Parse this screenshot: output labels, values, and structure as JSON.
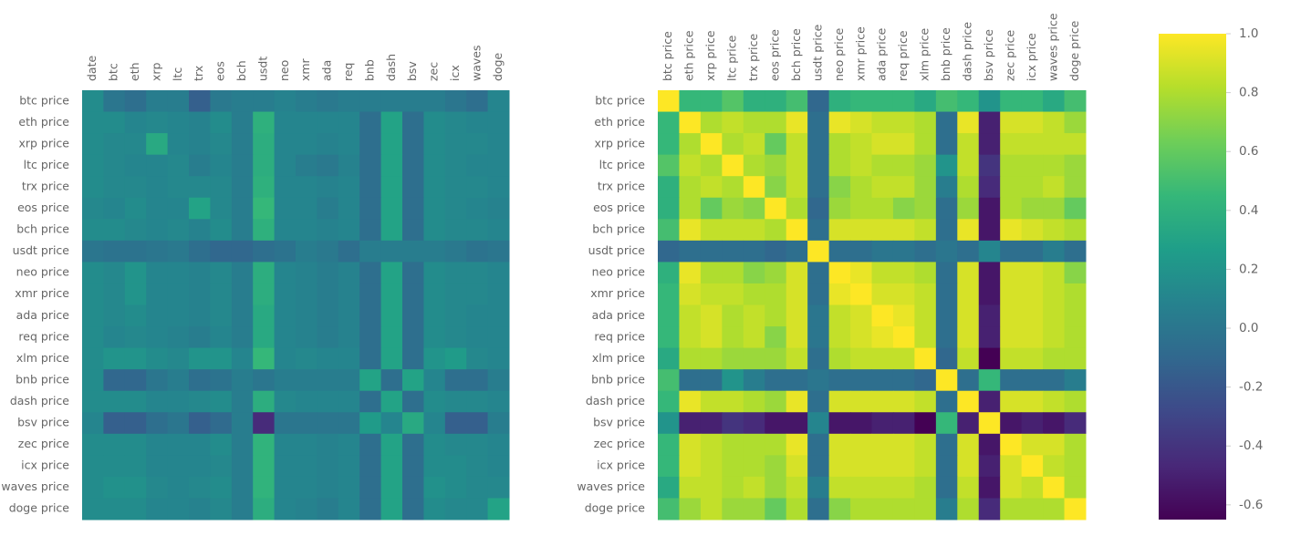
{
  "chart_data": [
    {
      "type": "heatmap",
      "colormap": "viridis",
      "vlim": [
        -0.65,
        1
      ],
      "columns": [
        "date",
        "btc",
        "eth",
        "xrp",
        "ltc",
        "trx",
        "eos",
        "bch",
        "usdt",
        "neo",
        "xmr",
        "ada",
        "req",
        "bnb",
        "dash",
        "bsv",
        "zec",
        "icx",
        "waves",
        "doge"
      ],
      "rows": [
        "btc price",
        "eth price",
        "xrp price",
        "ltc price",
        "trx price",
        "eos price",
        "bch price",
        "usdt price",
        "neo price",
        "xmr price",
        "ada price",
        "req price",
        "xlm price",
        "bnb price",
        "dash price",
        "bsv price",
        "zec price",
        "icx price",
        "waves price",
        "doge price"
      ],
      "values": [
        [
          0.15,
          0.0,
          -0.05,
          0.05,
          0.05,
          -0.15,
          0.02,
          0.05,
          0.05,
          0.08,
          0.05,
          0.02,
          0.05,
          0.05,
          0.05,
          0.05,
          0.05,
          0.0,
          -0.05,
          0.1
        ],
        [
          0.15,
          0.15,
          0.1,
          0.12,
          0.1,
          0.08,
          0.15,
          0.05,
          0.4,
          0.1,
          0.1,
          0.1,
          0.1,
          -0.05,
          0.3,
          -0.05,
          0.15,
          0.12,
          0.1,
          0.1
        ],
        [
          0.15,
          0.12,
          0.12,
          0.35,
          0.1,
          0.08,
          0.12,
          0.05,
          0.38,
          0.1,
          0.1,
          0.08,
          0.1,
          -0.05,
          0.3,
          -0.05,
          0.15,
          0.12,
          0.12,
          0.1
        ],
        [
          0.15,
          0.12,
          0.1,
          0.1,
          0.12,
          0.05,
          0.1,
          0.05,
          0.38,
          0.1,
          0.05,
          0.02,
          0.08,
          -0.05,
          0.3,
          -0.05,
          0.15,
          0.12,
          0.1,
          0.1
        ],
        [
          0.15,
          0.12,
          0.12,
          0.1,
          0.12,
          0.12,
          0.12,
          0.05,
          0.4,
          0.1,
          0.1,
          0.08,
          0.1,
          -0.05,
          0.3,
          -0.05,
          0.15,
          0.12,
          0.12,
          0.1
        ],
        [
          0.12,
          0.1,
          0.15,
          0.1,
          0.1,
          0.3,
          0.12,
          0.05,
          0.45,
          0.1,
          0.1,
          0.05,
          0.1,
          -0.05,
          0.3,
          -0.05,
          0.15,
          0.12,
          0.1,
          0.08
        ],
        [
          0.15,
          0.15,
          0.12,
          0.1,
          0.12,
          0.08,
          0.15,
          0.05,
          0.4,
          0.1,
          0.1,
          0.08,
          0.1,
          -0.05,
          0.3,
          -0.05,
          0.15,
          0.12,
          0.12,
          0.1
        ],
        [
          0.0,
          -0.02,
          -0.02,
          0.0,
          0.02,
          -0.05,
          -0.1,
          -0.1,
          -0.05,
          -0.02,
          0.05,
          0.02,
          -0.05,
          0.05,
          0.05,
          0.05,
          0.05,
          0.02,
          -0.02,
          0.0
        ],
        [
          0.15,
          0.12,
          0.2,
          0.1,
          0.1,
          0.08,
          0.12,
          0.05,
          0.38,
          0.1,
          0.08,
          0.05,
          0.08,
          -0.05,
          0.3,
          -0.05,
          0.15,
          0.12,
          0.12,
          0.1
        ],
        [
          0.15,
          0.12,
          0.2,
          0.1,
          0.1,
          0.08,
          0.12,
          0.05,
          0.38,
          0.1,
          0.08,
          0.05,
          0.08,
          -0.05,
          0.3,
          -0.05,
          0.15,
          0.12,
          0.12,
          0.1
        ],
        [
          0.15,
          0.12,
          0.15,
          0.1,
          0.1,
          0.08,
          0.12,
          0.05,
          0.35,
          0.1,
          0.08,
          0.05,
          0.08,
          -0.05,
          0.3,
          -0.05,
          0.15,
          0.12,
          0.1,
          0.1
        ],
        [
          0.15,
          0.1,
          0.12,
          0.1,
          0.08,
          0.05,
          0.1,
          0.05,
          0.35,
          0.1,
          0.08,
          0.05,
          0.08,
          -0.05,
          0.3,
          -0.05,
          0.15,
          0.12,
          0.1,
          0.1
        ],
        [
          0.15,
          0.2,
          0.2,
          0.15,
          0.12,
          0.2,
          0.2,
          0.1,
          0.45,
          0.1,
          0.12,
          0.1,
          0.1,
          -0.05,
          0.3,
          -0.05,
          0.2,
          0.25,
          0.12,
          0.1
        ],
        [
          0.15,
          -0.1,
          -0.1,
          0.0,
          0.05,
          -0.05,
          -0.02,
          0.05,
          0.0,
          0.05,
          0.05,
          0.05,
          0.05,
          0.3,
          -0.05,
          0.3,
          0.1,
          -0.05,
          -0.05,
          0.05
        ],
        [
          0.15,
          0.15,
          0.15,
          0.1,
          0.1,
          0.12,
          0.15,
          0.05,
          0.38,
          0.12,
          0.1,
          0.1,
          0.1,
          -0.05,
          0.3,
          -0.05,
          0.15,
          0.12,
          0.12,
          0.1
        ],
        [
          0.1,
          -0.15,
          -0.15,
          -0.05,
          0.0,
          -0.15,
          -0.08,
          0.05,
          -0.45,
          0.0,
          0.0,
          0.0,
          0.0,
          0.25,
          0.1,
          0.35,
          0.1,
          -0.15,
          -0.15,
          0.05
        ],
        [
          0.15,
          0.15,
          0.15,
          0.1,
          0.1,
          0.1,
          0.15,
          0.05,
          0.42,
          0.1,
          0.1,
          0.08,
          0.1,
          -0.05,
          0.3,
          -0.05,
          0.15,
          0.12,
          0.12,
          0.1
        ],
        [
          0.15,
          0.15,
          0.15,
          0.1,
          0.1,
          0.1,
          0.12,
          0.05,
          0.42,
          0.1,
          0.1,
          0.08,
          0.1,
          -0.05,
          0.3,
          -0.05,
          0.15,
          0.15,
          0.12,
          0.1
        ],
        [
          0.15,
          0.18,
          0.18,
          0.12,
          0.1,
          0.12,
          0.15,
          0.05,
          0.42,
          0.1,
          0.1,
          0.08,
          0.1,
          -0.05,
          0.3,
          -0.05,
          0.18,
          0.15,
          0.12,
          0.12
        ],
        [
          0.15,
          0.15,
          0.15,
          0.1,
          0.1,
          0.08,
          0.12,
          0.05,
          0.38,
          0.1,
          0.08,
          0.05,
          0.1,
          -0.05,
          0.3,
          -0.05,
          0.15,
          0.12,
          0.12,
          0.3
        ]
      ]
    },
    {
      "type": "heatmap",
      "colormap": "viridis",
      "vlim": [
        -0.65,
        1
      ],
      "columns": [
        "btc price",
        "eth price",
        "xrp price",
        "ltc price",
        "trx price",
        "eos price",
        "bch price",
        "usdt price",
        "neo price",
        "xmr price",
        "ada price",
        "req price",
        "xlm price",
        "bnb price",
        "dash price",
        "bsv price",
        "zec price",
        "icx price",
        "waves price",
        "doge price"
      ],
      "rows": [
        "btc price",
        "eth price",
        "xrp price",
        "ltc price",
        "trx price",
        "eos price",
        "bch price",
        "usdt price",
        "neo price",
        "xmr price",
        "ada price",
        "req price",
        "xlm price",
        "bnb price",
        "dash price",
        "bsv price",
        "zec price",
        "icx price",
        "waves price",
        "doge price"
      ],
      "colorbar_ticks": [
        {
          "value": 1,
          "label": "1.0"
        },
        0.8,
        0.6,
        0.4,
        0.2,
        {
          "value": 0,
          "label": "0.0"
        },
        -0.2,
        -0.4,
        -0.6
      ],
      "values": [
        [
          1,
          0.45,
          0.45,
          0.55,
          0.4,
          0.4,
          0.5,
          -0.1,
          0.4,
          0.45,
          0.45,
          0.45,
          0.35,
          0.5,
          0.45,
          0.2,
          0.45,
          0.45,
          0.35,
          0.5
        ],
        [
          0.45,
          1,
          0.8,
          0.85,
          0.8,
          0.8,
          0.95,
          -0.05,
          0.95,
          0.9,
          0.85,
          0.85,
          0.8,
          -0.05,
          0.95,
          -0.5,
          0.9,
          0.9,
          0.85,
          0.75
        ],
        [
          0.45,
          0.8,
          1,
          0.8,
          0.85,
          0.6,
          0.85,
          -0.05,
          0.8,
          0.85,
          0.9,
          0.9,
          0.8,
          -0.05,
          0.85,
          -0.5,
          0.85,
          0.85,
          0.85,
          0.85
        ],
        [
          0.55,
          0.85,
          0.8,
          1,
          0.8,
          0.75,
          0.85,
          -0.05,
          0.8,
          0.85,
          0.8,
          0.8,
          0.75,
          0.2,
          0.85,
          -0.4,
          0.8,
          0.8,
          0.8,
          0.75
        ],
        [
          0.4,
          0.8,
          0.85,
          0.8,
          1,
          0.7,
          0.85,
          -0.05,
          0.7,
          0.8,
          0.85,
          0.85,
          0.75,
          0.05,
          0.8,
          -0.45,
          0.8,
          0.8,
          0.85,
          0.75
        ],
        [
          0.4,
          0.8,
          0.6,
          0.75,
          0.7,
          1,
          0.8,
          -0.1,
          0.75,
          0.8,
          0.8,
          0.7,
          0.75,
          -0.05,
          0.75,
          -0.55,
          0.8,
          0.75,
          0.75,
          0.6
        ],
        [
          0.5,
          0.95,
          0.85,
          0.85,
          0.85,
          0.8,
          1,
          -0.05,
          0.9,
          0.9,
          0.9,
          0.9,
          0.85,
          -0.05,
          0.95,
          -0.55,
          0.95,
          0.9,
          0.85,
          0.8
        ],
        [
          -0.1,
          -0.05,
          -0.05,
          -0.05,
          -0.05,
          -0.1,
          -0.05,
          1,
          -0.05,
          -0.05,
          0,
          0,
          -0.05,
          0,
          -0.05,
          0.1,
          -0.05,
          -0.05,
          0.05,
          -0.05
        ],
        [
          0.4,
          0.95,
          0.8,
          0.8,
          0.7,
          0.75,
          0.9,
          -0.05,
          1,
          0.95,
          0.85,
          0.85,
          0.8,
          -0.05,
          0.9,
          -0.55,
          0.9,
          0.9,
          0.85,
          0.7
        ],
        [
          0.45,
          0.9,
          0.85,
          0.85,
          0.8,
          0.8,
          0.9,
          -0.05,
          0.95,
          1,
          0.9,
          0.9,
          0.85,
          -0.05,
          0.9,
          -0.55,
          0.9,
          0.9,
          0.85,
          0.8
        ],
        [
          0.45,
          0.85,
          0.9,
          0.8,
          0.85,
          0.8,
          0.9,
          0,
          0.85,
          0.9,
          1,
          0.95,
          0.85,
          -0.05,
          0.9,
          -0.5,
          0.9,
          0.9,
          0.85,
          0.8
        ],
        [
          0.45,
          0.85,
          0.9,
          0.8,
          0.85,
          0.7,
          0.9,
          0,
          0.85,
          0.9,
          0.95,
          1,
          0.85,
          -0.05,
          0.9,
          -0.5,
          0.9,
          0.9,
          0.85,
          0.8
        ],
        [
          0.35,
          0.8,
          0.8,
          0.75,
          0.75,
          0.75,
          0.85,
          -0.05,
          0.8,
          0.85,
          0.85,
          0.85,
          1,
          -0.1,
          0.85,
          -0.65,
          0.85,
          0.85,
          0.8,
          0.8
        ],
        [
          0.5,
          -0.05,
          -0.05,
          0.2,
          0.05,
          -0.05,
          -0.05,
          0,
          -0.05,
          -0.05,
          -0.05,
          -0.05,
          -0.1,
          1,
          -0.05,
          0.45,
          -0.05,
          -0.05,
          -0.05,
          0.05
        ],
        [
          0.45,
          0.95,
          0.85,
          0.85,
          0.8,
          0.75,
          0.95,
          -0.05,
          0.9,
          0.9,
          0.9,
          0.9,
          0.85,
          -0.05,
          1,
          -0.5,
          0.9,
          0.9,
          0.85,
          0.8
        ],
        [
          0.2,
          -0.5,
          -0.5,
          -0.4,
          -0.45,
          -0.55,
          -0.55,
          0.1,
          -0.55,
          -0.55,
          -0.5,
          -0.5,
          -0.65,
          0.45,
          -0.5,
          1,
          -0.55,
          -0.5,
          -0.55,
          -0.45
        ],
        [
          0.45,
          0.9,
          0.85,
          0.8,
          0.8,
          0.8,
          0.95,
          -0.05,
          0.9,
          0.9,
          0.9,
          0.9,
          0.85,
          -0.05,
          0.9,
          -0.55,
          1,
          0.9,
          0.9,
          0.8
        ],
        [
          0.45,
          0.9,
          0.85,
          0.8,
          0.8,
          0.75,
          0.9,
          -0.05,
          0.9,
          0.9,
          0.9,
          0.9,
          0.85,
          -0.05,
          0.9,
          -0.5,
          0.9,
          1,
          0.85,
          0.8
        ],
        [
          0.35,
          0.85,
          0.85,
          0.8,
          0.85,
          0.75,
          0.85,
          0.05,
          0.85,
          0.85,
          0.85,
          0.85,
          0.8,
          -0.05,
          0.85,
          -0.55,
          0.9,
          0.85,
          1,
          0.8
        ],
        [
          0.5,
          0.75,
          0.85,
          0.75,
          0.75,
          0.6,
          0.8,
          -0.05,
          0.7,
          0.8,
          0.8,
          0.8,
          0.8,
          0.05,
          0.8,
          -0.45,
          0.8,
          0.8,
          0.8,
          1
        ]
      ]
    }
  ]
}
